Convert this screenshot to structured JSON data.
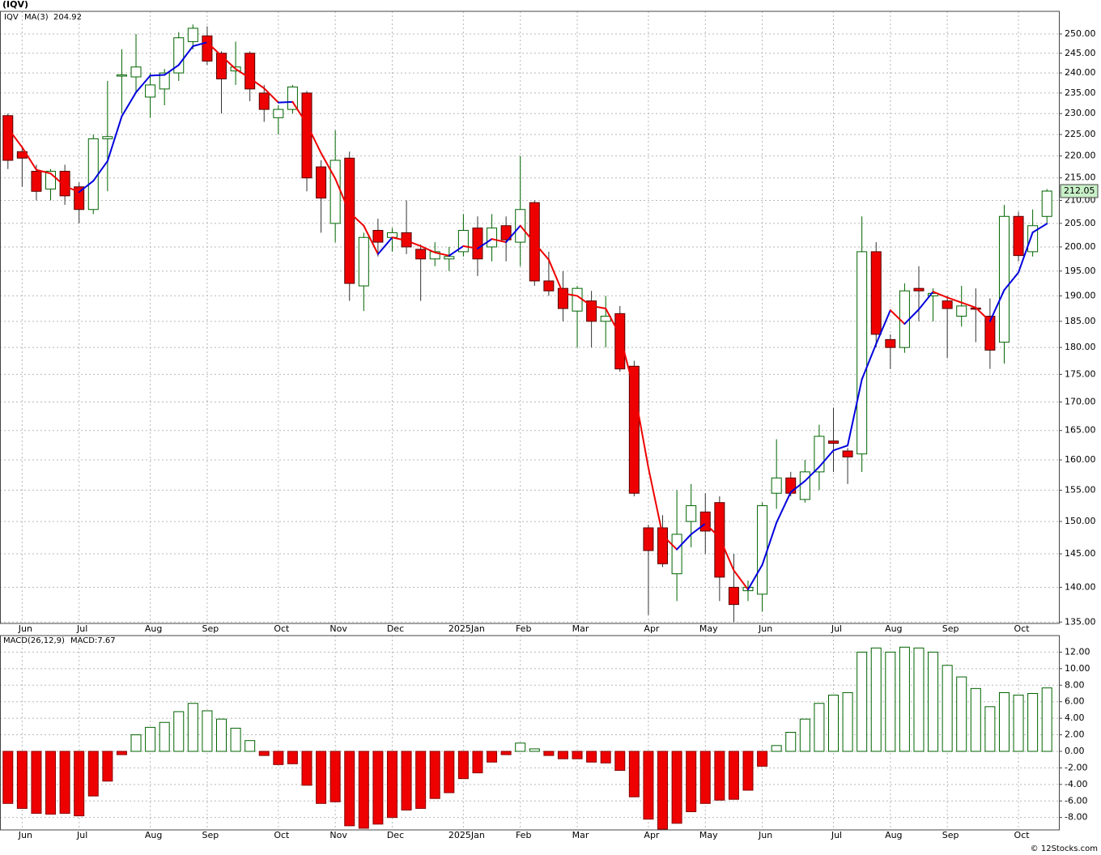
{
  "chart_data": [
    {
      "type": "candlestick",
      "title": "(IQV)",
      "ticker": "IQV",
      "ticker_color": "#006400",
      "log_scale": true,
      "grid": true,
      "categories": [
        null,
        "Jun",
        null,
        null,
        null,
        "Jul",
        null,
        null,
        null,
        null,
        "Aug",
        null,
        null,
        null,
        "Sep",
        null,
        null,
        null,
        null,
        "Oct",
        null,
        null,
        null,
        "Nov",
        null,
        null,
        null,
        "Dec",
        null,
        null,
        null,
        null,
        "2025Jan",
        null,
        null,
        null,
        "Feb",
        null,
        null,
        null,
        "Mar",
        null,
        null,
        null,
        null,
        "Apr",
        null,
        null,
        null,
        "May",
        null,
        null,
        null,
        "Jun",
        null,
        null,
        null,
        null,
        "Jul",
        null,
        null,
        null,
        "Aug",
        null,
        null,
        null,
        "Sep",
        null,
        null,
        null,
        null,
        "Oct",
        null,
        null
      ],
      "open": [
        229.5,
        221,
        216.5,
        212.5,
        216.5,
        213,
        208,
        224,
        239.5,
        239,
        234,
        236,
        240,
        248,
        249.5,
        245,
        240.5,
        245,
        235,
        229,
        231,
        235,
        217.5,
        205,
        219.5,
        192,
        203.5,
        202,
        203,
        199.5,
        197.5,
        197.5,
        199,
        204,
        200,
        204.5,
        201,
        209.5,
        193,
        191.5,
        187,
        189,
        185,
        186.5,
        176.5,
        149,
        149,
        142,
        150,
        151.5,
        153,
        140,
        139.5,
        139,
        154.5,
        157,
        153.5,
        158,
        163.2,
        161.5,
        161,
        199,
        181.5,
        180,
        191.5,
        190,
        189,
        186,
        187.6,
        186,
        181,
        206.5,
        199,
        206.5
      ],
      "high": [
        230,
        222,
        218,
        217,
        218,
        214,
        225,
        238,
        246,
        250,
        240,
        241,
        250.5,
        252.5,
        252,
        245.5,
        248,
        245.5,
        237,
        232,
        237,
        235.5,
        219,
        226,
        221,
        203,
        206,
        204,
        210,
        200.5,
        201,
        200,
        207,
        206.5,
        207,
        206.5,
        220,
        210,
        199,
        195,
        192,
        191,
        190,
        188,
        177.5,
        149.5,
        151,
        155,
        156,
        154.5,
        154,
        145,
        141,
        153,
        163.5,
        158,
        160,
        166,
        169,
        162,
        206.5,
        201,
        182.5,
        192.5,
        196,
        191.5,
        190,
        192,
        191.5,
        189.5,
        209,
        207.5,
        208,
        212.5
      ],
      "low": [
        217,
        213,
        210,
        210,
        209,
        205,
        207,
        212,
        230,
        235,
        229,
        232,
        238,
        246,
        242,
        230,
        237,
        233,
        228,
        225,
        230,
        212,
        203,
        201,
        189,
        187,
        198,
        199,
        198.5,
        189,
        196,
        195,
        198,
        194,
        197,
        197,
        196,
        192,
        190,
        185,
        180,
        180,
        180,
        175.5,
        154,
        136,
        143,
        138,
        146,
        145,
        138,
        135,
        138,
        136.5,
        152,
        154,
        153,
        155,
        158,
        156,
        158,
        180,
        176,
        179,
        185,
        185,
        178,
        184,
        181,
        176,
        177,
        197,
        198,
        205
      ],
      "close": [
        219,
        219.5,
        212,
        216.5,
        211,
        208,
        224,
        224.5,
        239.5,
        241.5,
        237,
        240,
        249,
        251.5,
        243,
        238.5,
        241.5,
        236,
        231,
        231,
        236.5,
        215,
        210.5,
        219,
        192.5,
        202,
        201,
        203,
        200,
        197.5,
        199,
        198,
        203.5,
        197.5,
        204,
        201.5,
        208,
        193,
        191,
        187.5,
        191.5,
        185,
        186,
        176,
        154.5,
        145.5,
        143.5,
        148,
        152.5,
        148.5,
        141.5,
        137.5,
        140,
        152.5,
        157,
        154.5,
        158,
        164,
        162.8,
        160.5,
        199,
        182.5,
        180,
        191,
        191,
        190.5,
        187.5,
        188,
        187.5,
        179.5,
        206.5,
        198.2,
        204.5,
        212.05
      ],
      "up_color": "#006400",
      "down_color": "#ee0000",
      "price_tag": "212.05",
      "price_tag_color": "#c8f0c8",
      "ma": {
        "name": "MA(3)",
        "value_label": "204.92",
        "color": "#0000dd",
        "falling_color": "#ee0000",
        "values": [
          226.5,
          222,
          216.83,
          216,
          213.17,
          211.83,
          214.33,
          218.83,
          229.33,
          235.17,
          239.33,
          239.5,
          242,
          246.83,
          247.83,
          244.33,
          241,
          238.67,
          236.17,
          232.67,
          232.83,
          227.5,
          220.67,
          214.83,
          207.33,
          204.5,
          198.5,
          202,
          201.33,
          200.17,
          198.83,
          198.17,
          200.17,
          199.67,
          201.67,
          201,
          204.5,
          200.83,
          197.33,
          190.5,
          190,
          188,
          187.5,
          182.33,
          172.17,
          158.67,
          147.83,
          145.67,
          148,
          149.67,
          147.5,
          142.5,
          139.67,
          143.33,
          149.83,
          154.67,
          156.5,
          158.83,
          161.6,
          162.43,
          174.1,
          180.67,
          187.17,
          184.5,
          187.33,
          190.83,
          189.67,
          188.67,
          187.67,
          185,
          191.17,
          194.73,
          203.07,
          204.92
        ]
      },
      "ylim": [
        134.8,
        256
      ],
      "yticks": [
        {
          "value": 135,
          "label": "135.00"
        },
        {
          "value": 140,
          "label": "140.00"
        },
        {
          "value": 145,
          "label": "145.00"
        },
        {
          "value": 150,
          "label": "150.00"
        },
        {
          "value": 155,
          "label": "155.00"
        },
        {
          "value": 160,
          "label": "160.00"
        },
        {
          "value": 165,
          "label": "165.00"
        },
        {
          "value": 170,
          "label": "170.00"
        },
        {
          "value": 175,
          "label": "175.00"
        },
        {
          "value": 180,
          "label": "180.00"
        },
        {
          "value": 185,
          "label": "185.00"
        },
        {
          "value": 190,
          "label": "190.00"
        },
        {
          "value": 195,
          "label": "195.00"
        },
        {
          "value": 200,
          "label": "200.00"
        },
        {
          "value": 205,
          "label": "205.00"
        },
        {
          "value": 210,
          "label": "210.00"
        },
        {
          "value": 215,
          "label": "215.00"
        },
        {
          "value": 220,
          "label": "220.00"
        },
        {
          "value": 225,
          "label": "225.00"
        },
        {
          "value": 230,
          "label": "230.00"
        },
        {
          "value": 235,
          "label": "235.00"
        },
        {
          "value": 240,
          "label": "240.00"
        },
        {
          "value": 245,
          "label": "245.00"
        },
        {
          "value": 250,
          "label": "250.00"
        }
      ]
    },
    {
      "type": "bar",
      "title": "MACD(26,12,9)",
      "value_label": "MACD:7.67",
      "label_color": "#0000dd",
      "grid": true,
      "categories": [
        null,
        "Jun",
        null,
        null,
        null,
        "Jul",
        null,
        null,
        null,
        null,
        "Aug",
        null,
        null,
        null,
        "Sep",
        null,
        null,
        null,
        null,
        "Oct",
        null,
        null,
        null,
        "Nov",
        null,
        null,
        null,
        "Dec",
        null,
        null,
        null,
        null,
        "2025Jan",
        null,
        null,
        null,
        "Feb",
        null,
        null,
        null,
        "Mar",
        null,
        null,
        null,
        null,
        "Apr",
        null,
        null,
        null,
        "May",
        null,
        null,
        null,
        "Jun",
        null,
        null,
        null,
        null,
        "Jul",
        null,
        null,
        null,
        "Aug",
        null,
        null,
        null,
        "Sep",
        null,
        null,
        null,
        null,
        "Oct",
        null,
        null
      ],
      "values": [
        -6.3,
        -6.9,
        -7.5,
        -7.6,
        -7.5,
        -7.8,
        -5.4,
        -3.6,
        -0.4,
        2,
        2.9,
        3.5,
        4.8,
        5.8,
        4.9,
        3.9,
        2.8,
        1.3,
        -0.5,
        -1.6,
        -1.5,
        -4.1,
        -6.3,
        -6.1,
        -9,
        -9.3,
        -8.8,
        -8,
        -7.1,
        -6.9,
        -5.7,
        -5,
        -3.3,
        -2.6,
        -1.3,
        -0.4,
        1,
        0.3,
        -0.5,
        -0.9,
        -0.9,
        -1.3,
        -1.4,
        -2.3,
        -5.5,
        -8.2,
        -9.4,
        -8.7,
        -7.3,
        -6.3,
        -5.9,
        -5.8,
        -4.7,
        -1.8,
        0.7,
        2.3,
        3.9,
        5.8,
        6.8,
        7.1,
        12,
        12.5,
        12,
        12.6,
        12.5,
        12,
        10.4,
        9,
        7.6,
        5.4,
        7.1,
        6.8,
        7,
        7.67
      ],
      "up_color": "#006400",
      "down_color": "#ee0000",
      "ylim": [
        -9.5,
        14
      ],
      "yticks": [
        {
          "value": -8,
          "label": "-8.00"
        },
        {
          "value": -6,
          "label": "-6.00"
        },
        {
          "value": -4,
          "label": "-4.00"
        },
        {
          "value": -2,
          "label": "-2.00"
        },
        {
          "value": 0,
          "label": "0.00"
        },
        {
          "value": 2,
          "label": "2.00"
        },
        {
          "value": 4,
          "label": "4.00"
        },
        {
          "value": 6,
          "label": "6.00"
        },
        {
          "value": 8,
          "label": "8.00"
        },
        {
          "value": 10,
          "label": "10.00"
        },
        {
          "value": 12,
          "label": "12.00"
        }
      ]
    }
  ],
  "footer": "© 12Stocks.com"
}
